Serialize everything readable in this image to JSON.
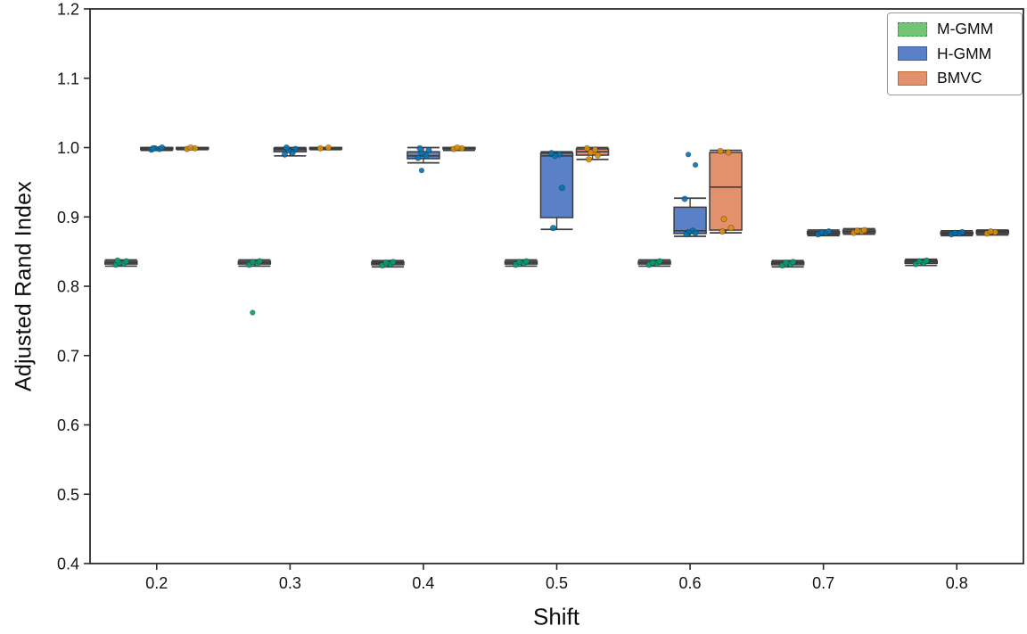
{
  "figure": {
    "background": "#ffffff"
  },
  "chart_data": {
    "type": "box",
    "title": "",
    "xlabel": "Shift",
    "ylabel": "Adjusted Rand Index",
    "categories": [
      "0.2",
      "0.3",
      "0.4",
      "0.5",
      "0.6",
      "0.7",
      "0.8"
    ],
    "ylim": [
      0.4,
      1.2
    ],
    "yticks": [
      "0.4",
      "0.5",
      "0.6",
      "0.7",
      "0.8",
      "0.9",
      "1.0",
      "1.1",
      "1.2"
    ],
    "grid": false,
    "legend_position": "upper right",
    "axis_color": "#2b2b2b",
    "box_edge_color": "#3d3d3d",
    "series": [
      {
        "name": "M-GMM",
        "box_fill": "#74c476",
        "point_color": "#029e73",
        "legend_border": "#2f9e44",
        "legend_border_style": "dashed",
        "boxes": [
          {
            "med": 0.834,
            "q1": 0.832,
            "q3": 0.836,
            "lo": 0.829,
            "hi": 0.838,
            "pts": [
              0.831,
              0.833,
              0.834,
              0.836,
              0.837
            ],
            "out": []
          },
          {
            "med": 0.834,
            "q1": 0.832,
            "q3": 0.836,
            "lo": 0.829,
            "hi": 0.838,
            "pts": [
              0.831,
              0.833,
              0.835,
              0.836
            ],
            "out": [
              0.762
            ]
          },
          {
            "med": 0.833,
            "q1": 0.831,
            "q3": 0.835,
            "lo": 0.828,
            "hi": 0.837,
            "pts": [
              0.83,
              0.832,
              0.834,
              0.835
            ],
            "out": []
          },
          {
            "med": 0.834,
            "q1": 0.832,
            "q3": 0.836,
            "lo": 0.829,
            "hi": 0.838,
            "pts": [
              0.831,
              0.833,
              0.835,
              0.836
            ],
            "out": []
          },
          {
            "med": 0.834,
            "q1": 0.832,
            "q3": 0.836,
            "lo": 0.829,
            "hi": 0.838,
            "pts": [
              0.831,
              0.833,
              0.834,
              0.836
            ],
            "out": []
          },
          {
            "med": 0.833,
            "q1": 0.831,
            "q3": 0.835,
            "lo": 0.828,
            "hi": 0.837,
            "pts": [
              0.83,
              0.832,
              0.834,
              0.835
            ],
            "out": []
          },
          {
            "med": 0.835,
            "q1": 0.833,
            "q3": 0.837,
            "lo": 0.83,
            "hi": 0.839,
            "pts": [
              0.832,
              0.834,
              0.836,
              0.837
            ],
            "out": []
          }
        ]
      },
      {
        "name": "H-GMM",
        "box_fill": "#5a80c7",
        "point_color": "#0173b2",
        "legend_border": "#3a5fa0",
        "legend_border_style": "solid",
        "boxes": [
          {
            "med": 0.999,
            "q1": 0.997,
            "q3": 1.0,
            "lo": 0.996,
            "hi": 1.0,
            "pts": [
              0.997,
              0.998,
              0.999,
              1.0,
              0.999
            ],
            "out": []
          },
          {
            "med": 0.997,
            "q1": 0.994,
            "q3": 0.999,
            "lo": 0.988,
            "hi": 1.0,
            "pts": [
              0.99,
              0.993,
              0.996,
              0.998,
              1.0
            ],
            "out": []
          },
          {
            "med": 0.988,
            "q1": 0.984,
            "q3": 0.994,
            "lo": 0.978,
            "hi": 1.0,
            "pts": [
              0.985,
              0.988,
              0.992,
              0.996,
              0.999
            ],
            "out": [
              0.967
            ]
          },
          {
            "med": 0.988,
            "q1": 0.899,
            "q3": 0.992,
            "lo": 0.882,
            "hi": 0.994,
            "pts": [
              0.992,
              0.99,
              0.988,
              0.942,
              0.884
            ],
            "out": []
          },
          {
            "med": 0.88,
            "q1": 0.876,
            "q3": 0.914,
            "lo": 0.872,
            "hi": 0.927,
            "pts": [
              0.926,
              0.88,
              0.878,
              0.877,
              0.875
            ],
            "out": [
              0.99,
              0.975
            ]
          },
          {
            "med": 0.877,
            "q1": 0.875,
            "q3": 0.879,
            "lo": 0.873,
            "hi": 0.881,
            "pts": [
              0.875,
              0.877,
              0.878,
              0.879
            ],
            "out": []
          },
          {
            "med": 0.877,
            "q1": 0.875,
            "q3": 0.878,
            "lo": 0.873,
            "hi": 0.88,
            "pts": [
              0.875,
              0.876,
              0.877,
              0.878
            ],
            "out": []
          }
        ]
      },
      {
        "name": "BMVC",
        "box_fill": "#e2916c",
        "point_color": "#de8f05",
        "legend_border": "#c06a36",
        "legend_border_style": "solid",
        "boxes": [
          {
            "med": 0.999,
            "q1": 0.998,
            "q3": 1.0,
            "lo": 0.997,
            "hi": 1.0,
            "pts": [
              0.998,
              0.999,
              1.0
            ],
            "out": []
          },
          {
            "med": 0.999,
            "q1": 0.998,
            "q3": 1.0,
            "lo": 0.997,
            "hi": 1.0,
            "pts": [
              0.999,
              1.0
            ],
            "out": []
          },
          {
            "med": 0.999,
            "q1": 0.998,
            "q3": 1.0,
            "lo": 0.996,
            "hi": 1.0,
            "pts": [
              0.998,
              0.999,
              1.0
            ],
            "out": []
          },
          {
            "med": 0.994,
            "q1": 0.989,
            "q3": 0.998,
            "lo": 0.983,
            "hi": 1.0,
            "pts": [
              0.999,
              0.997,
              0.993,
              0.989,
              0.983
            ],
            "out": []
          },
          {
            "med": 0.943,
            "q1": 0.881,
            "q3": 0.993,
            "lo": 0.877,
            "hi": 0.996,
            "pts": [
              0.995,
              0.993,
              0.897,
              0.884,
              0.879
            ],
            "out": []
          },
          {
            "med": 0.879,
            "q1": 0.877,
            "q3": 0.881,
            "lo": 0.875,
            "hi": 0.883,
            "pts": [
              0.877,
              0.879,
              0.88,
              0.881
            ],
            "out": []
          },
          {
            "med": 0.878,
            "q1": 0.876,
            "q3": 0.88,
            "lo": 0.874,
            "hi": 0.881,
            "pts": [
              0.876,
              0.878,
              0.879
            ],
            "out": []
          }
        ]
      }
    ]
  }
}
